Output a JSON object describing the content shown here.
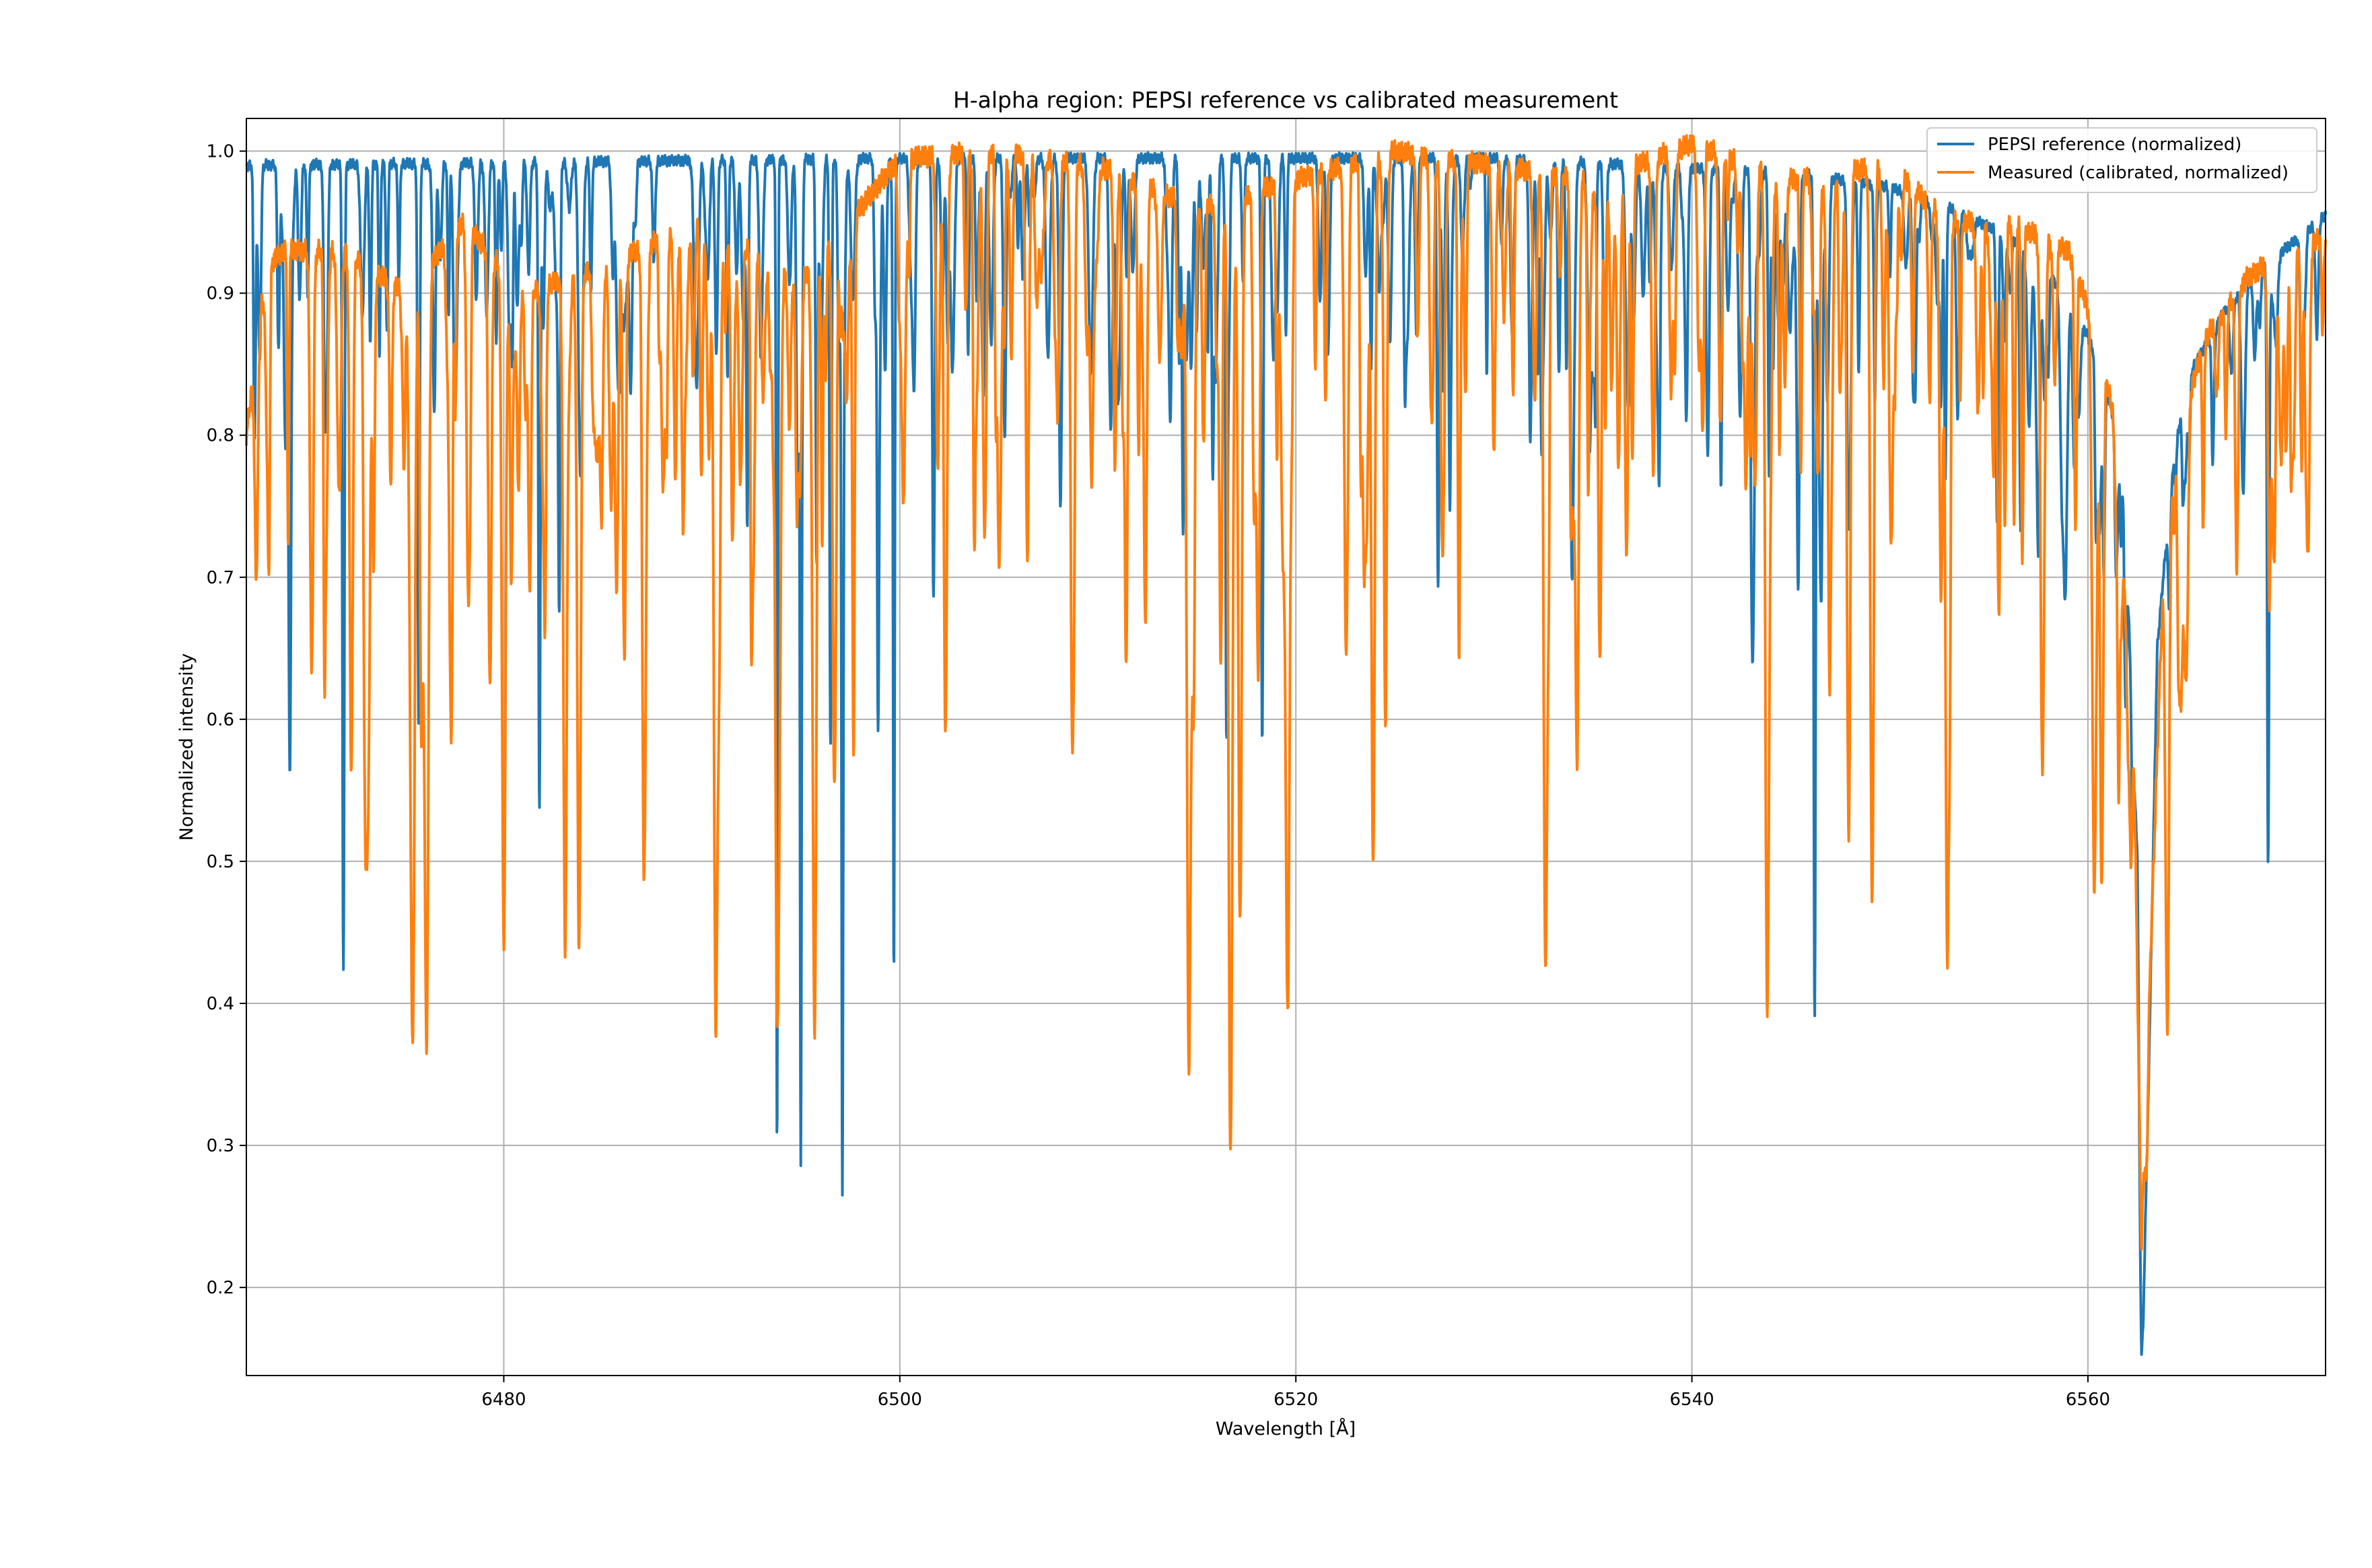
{
  "chart_data": {
    "type": "line",
    "title": "H-alpha region: PEPSI reference vs calibrated measurement",
    "xlabel": "Wavelength [Å]",
    "ylabel": "Normalized intensity",
    "xlim": [
      6467,
      6572
    ],
    "ylim": [
      0.138,
      1.023
    ],
    "grid": true,
    "legend_position": "top-right",
    "x_ticks": [
      6480,
      6500,
      6520,
      6540,
      6560
    ],
    "y_ticks": [
      0.2,
      0.3,
      0.4,
      0.5,
      0.6,
      0.7,
      0.8,
      0.9,
      1.0
    ],
    "x_tick_labels": [
      "6480",
      "6500",
      "6520",
      "6540",
      "6560"
    ],
    "y_tick_labels": [
      "0.2",
      "0.3",
      "0.4",
      "0.5",
      "0.6",
      "0.7",
      "0.8",
      "0.9",
      "1.0"
    ],
    "series": [
      {
        "name": "PEPSI reference (normalized)",
        "color": "#1f77b4",
        "continuum": [
          [
            6467,
            0.99
          ],
          [
            6500,
            0.995
          ],
          [
            6530,
            0.995
          ],
          [
            6545,
            0.985
          ],
          [
            6550,
            0.975
          ],
          [
            6553,
            0.96
          ],
          [
            6556,
            0.94
          ],
          [
            6558,
            0.915
          ],
          [
            6560,
            0.87
          ],
          [
            6561,
            0.83
          ],
          [
            6561.8,
            0.78
          ],
          [
            6562.5,
            0.5
          ],
          [
            6562.7,
            0.17
          ],
          [
            6563.0,
            0.3
          ],
          [
            6563.5,
            0.65
          ],
          [
            6564.3,
            0.78
          ],
          [
            6565,
            0.84
          ],
          [
            6567,
            0.89
          ],
          [
            6569,
            0.92
          ],
          [
            6572,
            0.955
          ]
        ],
        "lines": [
          [
            6469.2,
            0.63,
            0.06
          ],
          [
            6470.1,
            0.9,
            0.05
          ],
          [
            6471.9,
            0.42,
            0.05
          ],
          [
            6474.1,
            0.87,
            0.05
          ],
          [
            6474.7,
            0.91,
            0.05
          ],
          [
            6475.7,
            0.6,
            0.05
          ],
          [
            6477.5,
            0.93,
            0.05
          ],
          [
            6481.8,
            0.54,
            0.05
          ],
          [
            6482.8,
            0.7,
            0.05
          ],
          [
            6484.4,
            0.9,
            0.05
          ],
          [
            6491.3,
            0.84,
            0.05
          ],
          [
            6492.3,
            0.74,
            0.05
          ],
          [
            6493.8,
            0.3,
            0.04
          ],
          [
            6495.0,
            0.3,
            0.04
          ],
          [
            6495.8,
            0.71,
            0.05
          ],
          [
            6496.5,
            0.58,
            0.05
          ],
          [
            6497.1,
            0.32,
            0.04
          ],
          [
            6498.9,
            0.63,
            0.05
          ],
          [
            6499.7,
            0.44,
            0.04
          ],
          [
            6501.7,
            0.81,
            0.05
          ],
          [
            6502.4,
            0.88,
            0.05
          ],
          [
            6508.1,
            0.9,
            0.05
          ],
          [
            6514.3,
            0.75,
            0.05
          ],
          [
            6515.8,
            0.78,
            0.05
          ],
          [
            6516.5,
            0.63,
            0.05
          ],
          [
            6518.3,
            0.58,
            0.05
          ],
          [
            6519.5,
            0.87,
            0.05
          ],
          [
            6523.8,
            0.85,
            0.05
          ],
          [
            6525.5,
            0.88,
            0.05
          ],
          [
            6527.2,
            0.78,
            0.05
          ],
          [
            6532.4,
            0.83,
            0.05
          ],
          [
            6533.9,
            0.87,
            0.05
          ],
          [
            6543.9,
            0.77,
            0.05
          ],
          [
            6545.4,
            0.9,
            0.05
          ],
          [
            6546.2,
            0.39,
            0.05
          ],
          [
            6550.0,
            0.91,
            0.05
          ],
          [
            6552.8,
            0.77,
            0.05
          ],
          [
            6555.4,
            0.8,
            0.05
          ],
          [
            6556.6,
            0.73,
            0.05
          ],
          [
            6558.0,
            0.85,
            0.05
          ],
          [
            6560.4,
            0.75,
            0.05
          ],
          [
            6560.8,
            0.72,
            0.05
          ],
          [
            6561.4,
            0.76,
            0.05
          ],
          [
            6564.1,
            0.68,
            0.06
          ],
          [
            6569.1,
            0.5,
            0.05
          ]
        ]
      },
      {
        "name": "Measured (calibrated, normalized)",
        "color": "#ff7f0e",
        "continuum": [
          [
            6467,
            0.8
          ],
          [
            6468,
            0.92
          ],
          [
            6469,
            0.93
          ],
          [
            6472,
            0.93
          ],
          [
            6475,
            0.9
          ],
          [
            6478,
            0.95
          ],
          [
            6481,
            0.9
          ],
          [
            6485,
            0.92
          ],
          [
            6490,
            0.95
          ],
          [
            6495,
            0.91
          ],
          [
            6498,
            0.96
          ],
          [
            6500,
            0.995
          ],
          [
            6505,
            1.0
          ],
          [
            6510,
            0.99
          ],
          [
            6515,
            0.96
          ],
          [
            6520,
            0.98
          ],
          [
            6525,
            1.0
          ],
          [
            6530,
            0.99
          ],
          [
            6535,
            0.98
          ],
          [
            6540,
            1.005
          ],
          [
            6545,
            0.98
          ],
          [
            6550,
            0.99
          ],
          [
            6553,
            0.95
          ],
          [
            6556,
            0.95
          ],
          [
            6559,
            0.93
          ],
          [
            6560.5,
            0.87
          ],
          [
            6561.5,
            0.8
          ],
          [
            6562.3,
            0.6
          ],
          [
            6562.7,
            0.23
          ],
          [
            6563.2,
            0.45
          ],
          [
            6563.8,
            0.7
          ],
          [
            6564.5,
            0.8
          ],
          [
            6566,
            0.87
          ],
          [
            6568,
            0.91
          ],
          [
            6570,
            0.93
          ],
          [
            6572,
            0.94
          ]
        ],
        "lines": [
          [
            6467.5,
            0.7,
            0.08
          ],
          [
            6470.3,
            0.63,
            0.08
          ],
          [
            6472.3,
            0.56,
            0.08
          ],
          [
            6473.0,
            0.58,
            0.08
          ],
          [
            6475.4,
            0.38,
            0.1
          ],
          [
            6476.1,
            0.37,
            0.1
          ],
          [
            6477.3,
            0.66,
            0.08
          ],
          [
            6478.2,
            0.7,
            0.08
          ],
          [
            6479.3,
            0.62,
            0.08
          ],
          [
            6480.0,
            0.44,
            0.09
          ],
          [
            6483.1,
            0.44,
            0.09
          ],
          [
            6483.8,
            0.44,
            0.09
          ],
          [
            6485.7,
            0.69,
            0.08
          ],
          [
            6487.1,
            0.56,
            0.09
          ],
          [
            6490.7,
            0.4,
            0.09
          ],
          [
            6492.6,
            0.71,
            0.08
          ],
          [
            6493.8,
            0.45,
            0.09
          ],
          [
            6495.7,
            0.39,
            0.09
          ],
          [
            6496.7,
            0.55,
            0.09
          ],
          [
            6502.3,
            0.62,
            0.08
          ],
          [
            6504.3,
            0.74,
            0.08
          ],
          [
            6508.7,
            0.62,
            0.08
          ],
          [
            6512.4,
            0.67,
            0.08
          ],
          [
            6514.6,
            0.43,
            0.09
          ],
          [
            6516.7,
            0.29,
            0.1
          ],
          [
            6517.2,
            0.56,
            0.08
          ],
          [
            6518.1,
            0.64,
            0.08
          ],
          [
            6519.6,
            0.48,
            0.09
          ],
          [
            6523.9,
            0.5,
            0.09
          ],
          [
            6530.0,
            0.79,
            0.08
          ],
          [
            6532.6,
            0.5,
            0.09
          ],
          [
            6534.2,
            0.57,
            0.09
          ],
          [
            6536.7,
            0.71,
            0.08
          ],
          [
            6543.8,
            0.41,
            0.09
          ],
          [
            6547.9,
            0.61,
            0.08
          ],
          [
            6549.1,
            0.47,
            0.09
          ],
          [
            6552.9,
            0.43,
            0.09
          ],
          [
            6555.5,
            0.67,
            0.08
          ],
          [
            6557.7,
            0.56,
            0.09
          ],
          [
            6560.7,
            0.6,
            0.08
          ],
          [
            6564.0,
            0.41,
            0.09
          ],
          [
            6569.4,
            0.71,
            0.08
          ]
        ]
      }
    ]
  }
}
